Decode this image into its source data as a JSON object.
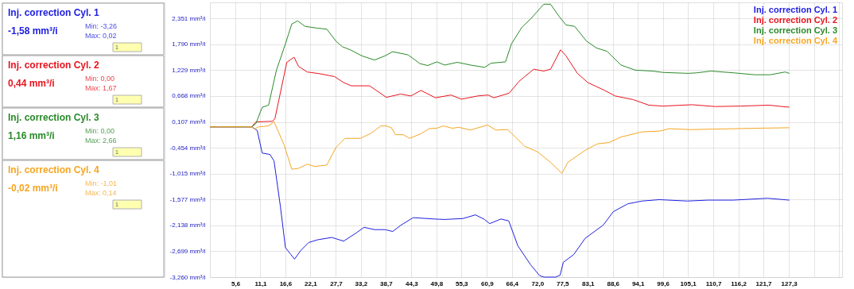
{
  "chart_data": {
    "type": "line",
    "xlim": [
      0,
      139
    ],
    "xticks": [
      {
        "value": 5.6,
        "label": "5,6"
      },
      {
        "value": 11.1,
        "label": "11,1"
      },
      {
        "value": 16.6,
        "label": "16,6"
      },
      {
        "value": 22.1,
        "label": "22,1"
      },
      {
        "value": 27.7,
        "label": "27,7"
      },
      {
        "value": 33.2,
        "label": "33,2"
      },
      {
        "value": 38.7,
        "label": "38,7"
      },
      {
        "value": 44.3,
        "label": "44,3"
      },
      {
        "value": 49.8,
        "label": "49,8"
      },
      {
        "value": 55.3,
        "label": "55,3"
      },
      {
        "value": 60.9,
        "label": "60,9"
      },
      {
        "value": 66.4,
        "label": "66,4"
      },
      {
        "value": 72.0,
        "label": "72,0"
      },
      {
        "value": 77.5,
        "label": "77,5"
      },
      {
        "value": 83.1,
        "label": "83,1"
      },
      {
        "value": 88.6,
        "label": "88,6"
      },
      {
        "value": 94.1,
        "label": "94,1"
      },
      {
        "value": 99.6,
        "label": "99,6"
      },
      {
        "value": 105.1,
        "label": "105,1"
      },
      {
        "value": 110.7,
        "label": "110,7"
      },
      {
        "value": 116.2,
        "label": "116,2"
      },
      {
        "value": 121.7,
        "label": "121,7"
      },
      {
        "value": 127.3,
        "label": "127,3"
      },
      {
        "value": 132.8,
        "label": null
      },
      {
        "value": 138.3,
        "label": null
      }
    ],
    "ylim": [
      -3.26,
      2.7
    ],
    "yticks": [
      {
        "value": 2.351,
        "label": "2,351 mm³/i"
      },
      {
        "value": 1.79,
        "label": "1,790 mm³/i"
      },
      {
        "value": 1.229,
        "label": "1,229 mm³/i"
      },
      {
        "value": 0.668,
        "label": "0,668 mm³/i"
      },
      {
        "value": 0.107,
        "label": "0,107 mm³/i"
      },
      {
        "value": -0.454,
        "label": "-0,454 mm³/i"
      },
      {
        "value": -1.015,
        "label": "-1,015 mm³/i"
      },
      {
        "value": -1.577,
        "label": "-1,577 mm³/i"
      },
      {
        "value": -2.138,
        "label": "-2,138 mm³/i"
      },
      {
        "value": -2.699,
        "label": "-2,699 mm³/i"
      },
      {
        "value": -3.26,
        "label": "-3,260 mm³/i"
      }
    ],
    "grid": true,
    "legend": "top right",
    "marker": "none",
    "line_style": "solid",
    "series": [
      {
        "name": "Inj. correction Cyl. 1",
        "color": "#2020e0",
        "x": [
          0,
          9.2,
          10.4,
          11.5,
          13.2,
          14.1,
          15.5,
          16.6,
          17.8,
          18.6,
          20.0,
          21.7,
          23.7,
          26.8,
          29.4,
          32.2,
          33.9,
          36.2,
          38.5,
          40.2,
          41.9,
          44.7,
          49.3,
          51.6,
          55.6,
          58.4,
          60.4,
          61.5,
          64.0,
          65.7,
          67.7,
          70.5,
          72.5,
          73.5,
          76.0,
          77.0,
          77.7,
          80.0,
          82.5,
          86.5,
          88.7,
          91.9,
          95.0,
          98.8,
          105.0,
          109.5,
          115.1,
          122.6,
          127.4
        ],
        "values": [
          0,
          0,
          -0.08,
          -0.57,
          -0.6,
          -0.74,
          -1.73,
          -2.62,
          -2.77,
          -2.87,
          -2.68,
          -2.51,
          -2.45,
          -2.4,
          -2.48,
          -2.3,
          -2.18,
          -2.23,
          -2.23,
          -2.27,
          -2.14,
          -1.97,
          -2.0,
          -2.01,
          -1.99,
          -1.91,
          -2.01,
          -2.1,
          -2.0,
          -2.04,
          -2.58,
          -2.99,
          -3.23,
          -3.26,
          -3.26,
          -3.22,
          -2.94,
          -2.77,
          -2.42,
          -2.13,
          -1.84,
          -1.67,
          -1.61,
          -1.58,
          -1.61,
          -1.59,
          -1.59,
          -1.55,
          -1.59
        ]
      },
      {
        "name": "Inj. correction Cyl. 2",
        "color": "#e8141e",
        "x": [
          0,
          9.2,
          10.1,
          13.8,
          14.3,
          16.9,
          18.5,
          19.5,
          21.4,
          24.3,
          27.4,
          29.4,
          31.1,
          35.1,
          38.8,
          41.9,
          44.2,
          46.4,
          49.6,
          53.0,
          55.3,
          58.9,
          61.2,
          62.4,
          65.8,
          68.0,
          71.2,
          73.4,
          74.9,
          77.1,
          78.3,
          80.8,
          83.1,
          86.8,
          89.1,
          93.1,
          96.5,
          99.6,
          106.0,
          111.1,
          116.7,
          122.9,
          126.9,
          127.4
        ],
        "values": [
          0,
          0,
          0.107,
          0.12,
          0.18,
          1.4,
          1.51,
          1.31,
          1.19,
          1.15,
          1.09,
          0.96,
          0.89,
          0.89,
          0.64,
          0.71,
          0.67,
          0.79,
          0.63,
          0.69,
          0.6,
          0.67,
          0.69,
          0.63,
          0.73,
          0.99,
          1.25,
          1.21,
          1.25,
          1.67,
          1.54,
          1.16,
          0.96,
          0.79,
          0.67,
          0.59,
          0.47,
          0.45,
          0.48,
          0.44,
          0.45,
          0.47,
          0.43,
          0.43
        ]
      },
      {
        "name": "Inj. correction Cyl. 3",
        "color": "#2a8a2a",
        "x": [
          0,
          9.2,
          10.1,
          11.5,
          12.9,
          14.6,
          16.6,
          18.0,
          19.3,
          20.9,
          23.7,
          25.7,
          27.7,
          29.1,
          31.1,
          33.4,
          36.2,
          38.5,
          40.2,
          43.6,
          46.2,
          47.9,
          49.9,
          51.6,
          54.4,
          57.3,
          60.4,
          61.8,
          65.0,
          66.3,
          68.6,
          70.6,
          73.4,
          74.9,
          76.9,
          78.3,
          80.2,
          82.8,
          85.0,
          87.3,
          90.4,
          93.5,
          97.4,
          99.6,
          105.2,
          106.9,
          110.2,
          115.3,
          119.8,
          123.2,
          126.5,
          127.4
        ],
        "values": [
          0,
          0,
          0.07,
          0.425,
          0.47,
          1.22,
          1.8,
          2.23,
          2.3,
          2.18,
          2.14,
          2.12,
          1.86,
          1.74,
          1.66,
          1.54,
          1.45,
          1.54,
          1.63,
          1.56,
          1.37,
          1.33,
          1.41,
          1.34,
          1.4,
          1.34,
          1.29,
          1.38,
          1.41,
          1.8,
          2.16,
          2.35,
          2.66,
          2.66,
          2.38,
          2.21,
          2.18,
          1.86,
          1.71,
          1.64,
          1.34,
          1.23,
          1.21,
          1.18,
          1.16,
          1.17,
          1.21,
          1.17,
          1.13,
          1.13,
          1.19,
          1.16
        ]
      },
      {
        "name": "Inj. correction Cyl. 4",
        "color": "#f5a623",
        "x": [
          0,
          9.2,
          9.8,
          10.7,
          12.9,
          14.1,
          16.3,
          18.0,
          19.5,
          21.4,
          23.1,
          25.7,
          27.7,
          29.7,
          33.1,
          35.4,
          37.6,
          38.8,
          39.9,
          40.8,
          42.5,
          43.9,
          46.4,
          48.2,
          49.9,
          51.3,
          53.3,
          54.7,
          57.3,
          61.0,
          62.9,
          65.5,
          69.2,
          72.0,
          74.9,
          77.4,
          78.7,
          82.5,
          85.2,
          87.8,
          90.4,
          95.0,
          99.1,
          101.0,
          105.6,
          110.6,
          120.3,
          127.4
        ],
        "values": [
          0,
          0,
          -0.05,
          0,
          0.02,
          0.11,
          -0.39,
          -0.92,
          -0.9,
          -0.81,
          -0.86,
          -0.83,
          -0.45,
          -0.25,
          -0.25,
          -0.14,
          0.02,
          0.02,
          -0.02,
          -0.17,
          -0.17,
          -0.25,
          -0.15,
          -0.04,
          -0.03,
          0.02,
          -0.03,
          -0.01,
          -0.07,
          0.04,
          -0.07,
          -0.06,
          -0.42,
          -0.54,
          -0.77,
          -1.01,
          -0.77,
          -0.51,
          -0.37,
          -0.34,
          -0.22,
          -0.11,
          -0.09,
          -0.04,
          -0.06,
          -0.05,
          -0.03,
          -0.02
        ]
      }
    ],
    "annotations": [
      "Inj. correction Cyl. 1",
      "-1,58 mm³/i",
      "Min: -3,26",
      "Max: 0,02",
      "1",
      "Inj. correction Cyl. 2",
      "0,44 mm³/i",
      "Min: 0,00",
      "Max: 1,67",
      "1",
      "Inj. correction Cyl. 3",
      "1,16 mm³/i",
      "Min: 0,00",
      "Max: 2,66",
      "1",
      "Inj. correction Cyl. 4",
      "-0,02 mm³/i",
      "Min: -1,01",
      "Max: 0,14",
      "1"
    ]
  }
}
